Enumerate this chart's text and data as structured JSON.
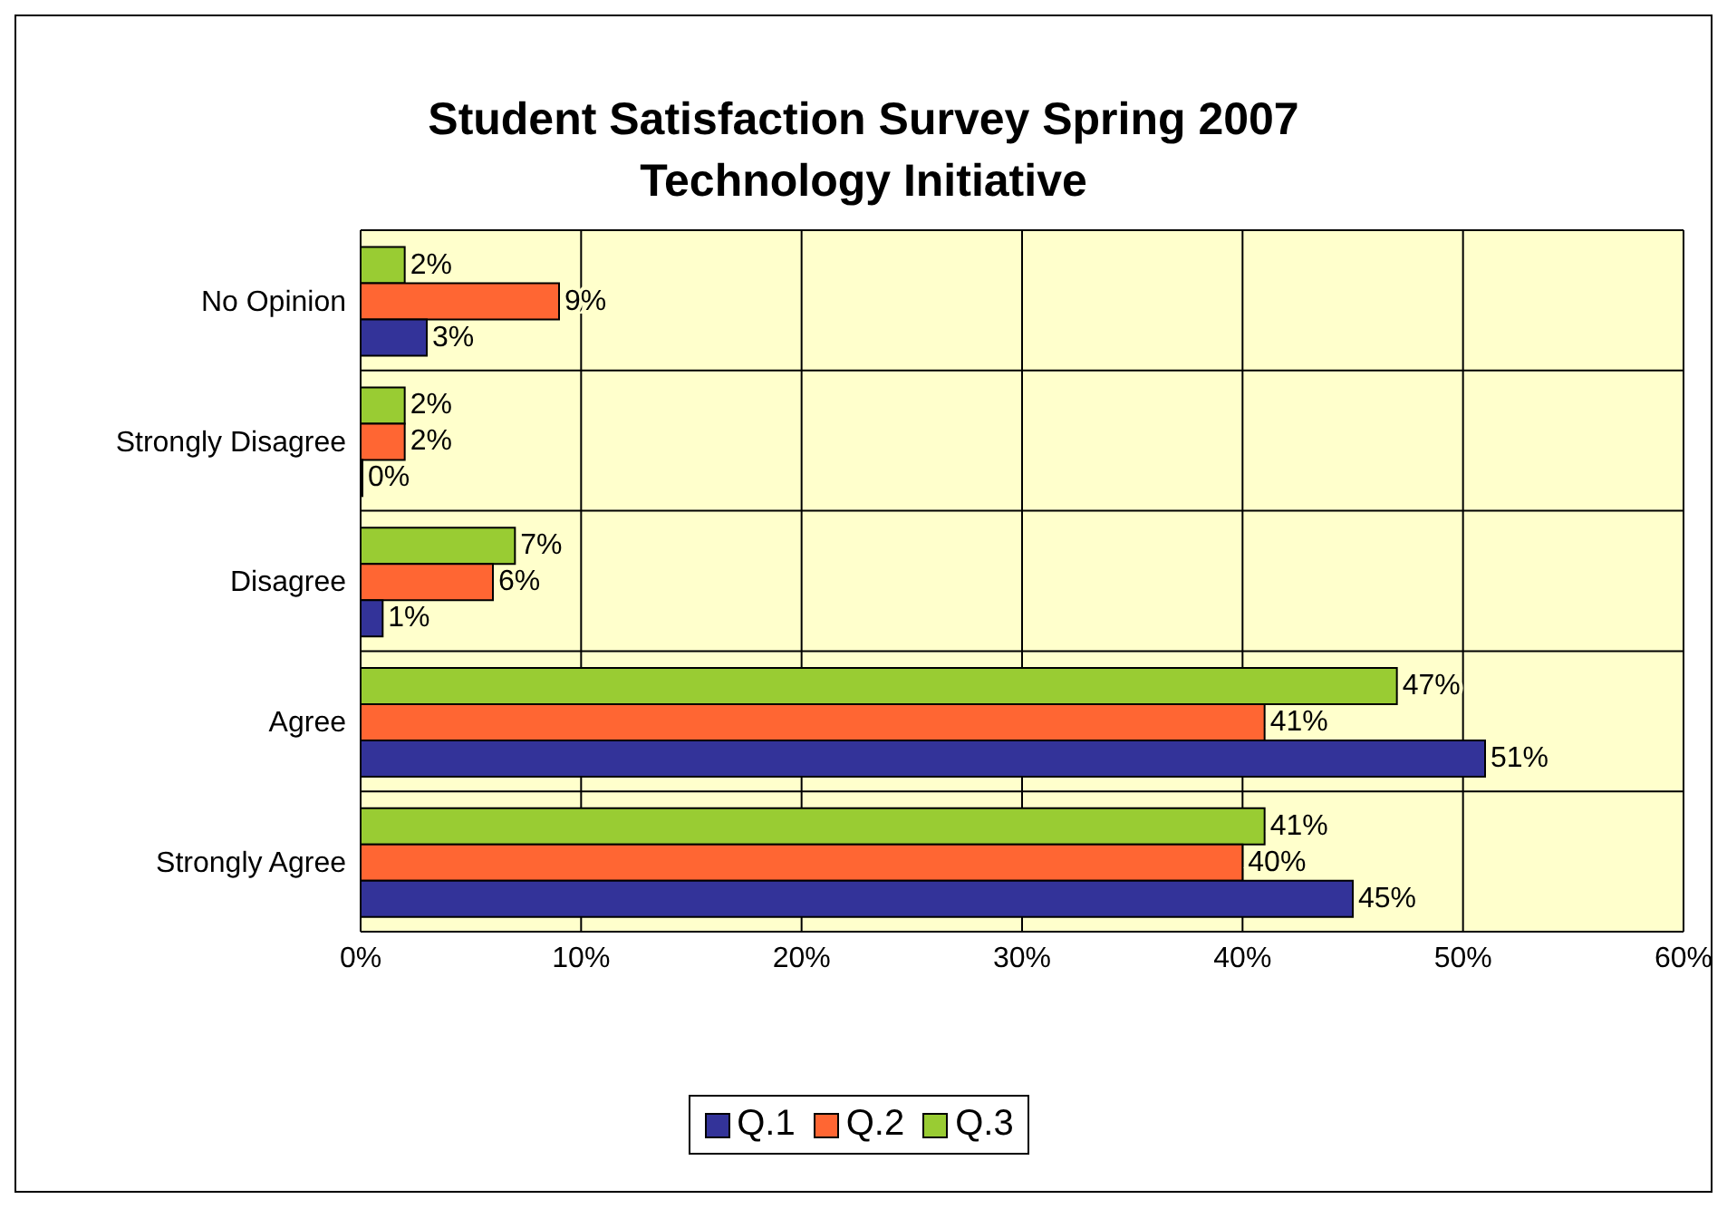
{
  "chart_data": {
    "type": "bar",
    "orientation": "horizontal",
    "title": "Student Satisfaction Survey Spring 2007",
    "subtitle": "Technology Initiative",
    "categories": [
      "No Opinion",
      "Strongly Disagree",
      "Disagree",
      "Agree",
      "Strongly Agree"
    ],
    "series": [
      {
        "name": "Q.1",
        "color": "#333399",
        "values": [
          3,
          0,
          1,
          51,
          45
        ],
        "value_labels": [
          "3%",
          "0%",
          "1%",
          "51%",
          "45%"
        ]
      },
      {
        "name": "Q.2",
        "color": "#ff6633",
        "values": [
          9,
          2,
          6,
          41,
          40
        ],
        "value_labels": [
          "9%",
          "2%",
          "6%",
          "41%",
          "40%"
        ]
      },
      {
        "name": "Q.3",
        "color": "#99cc33",
        "values": [
          2,
          2,
          7,
          47,
          41
        ],
        "value_labels": [
          "2%",
          "2%",
          "7%",
          "47%",
          "41%"
        ]
      }
    ],
    "xlim": [
      0,
      60
    ],
    "xticks": [
      {
        "value": 0,
        "label": "0%"
      },
      {
        "value": 10,
        "label": "10%"
      },
      {
        "value": 20,
        "label": "20%"
      },
      {
        "value": 30,
        "label": "30%"
      },
      {
        "value": 40,
        "label": "40%"
      },
      {
        "value": 50,
        "label": "50%"
      },
      {
        "value": 60,
        "label": "60%"
      }
    ],
    "grid": true,
    "legend": "bottom"
  }
}
